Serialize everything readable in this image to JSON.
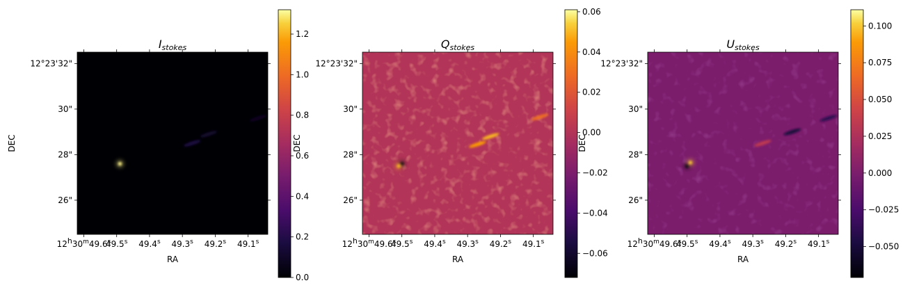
{
  "chart_data": [
    {
      "type": "heatmap",
      "title": "I",
      "title_subscript": "stokes",
      "xlabel": "RA",
      "ylabel": "DEC",
      "colormap": "inferno",
      "x_ticks": [
        {
          "prefix": "12",
          "h": "h",
          "mid": "30",
          "m": "m",
          "val": "49.6",
          "s": "s"
        },
        {
          "prefix": "",
          "h": "",
          "mid": "",
          "m": "",
          "val": "49.5",
          "s": "s"
        },
        {
          "prefix": "",
          "h": "",
          "mid": "",
          "m": "",
          "val": "49.4",
          "s": "s"
        },
        {
          "prefix": "",
          "h": "",
          "mid": "",
          "m": "",
          "val": "49.3",
          "s": "s"
        },
        {
          "prefix": "",
          "h": "",
          "mid": "",
          "m": "",
          "val": "49.2",
          "s": "s"
        },
        {
          "prefix": "",
          "h": "",
          "mid": "",
          "m": "",
          "val": "49.1",
          "s": "s"
        }
      ],
      "x_tick_values": [
        49.6,
        49.5,
        49.4,
        49.3,
        49.2,
        49.1
      ],
      "xlim": [
        49.62,
        49.04
      ],
      "y_ticks": [
        "12°23'32\"",
        "30\"",
        "28\"",
        "26\""
      ],
      "y_tick_values": [
        32,
        30,
        28,
        26
      ],
      "ylim": [
        24.5,
        32.5
      ],
      "colorbar": {
        "ticks": [
          "0.0",
          "0.2",
          "0.4",
          "0.6",
          "0.8",
          "1.0",
          "1.2"
        ],
        "tick_values": [
          0.0,
          0.2,
          0.4,
          0.6,
          0.8,
          1.0,
          1.2
        ],
        "range": [
          0.0,
          1.32
        ]
      },
      "background_value": 0.0,
      "features": [
        {
          "ra": 49.49,
          "dec": 27.6,
          "value": 1.3,
          "kind": "point-source"
        },
        {
          "ra": 49.27,
          "dec": 28.5,
          "value": 0.18,
          "kind": "jet"
        },
        {
          "ra": 49.22,
          "dec": 28.9,
          "value": 0.12,
          "kind": "jet"
        },
        {
          "ra": 49.07,
          "dec": 29.6,
          "value": 0.08,
          "kind": "jet"
        }
      ]
    },
    {
      "type": "heatmap",
      "title": "Q",
      "title_subscript": "stokes",
      "xlabel": "RA",
      "ylabel": "DEC",
      "colormap": "inferno",
      "x_ticks": [
        {
          "prefix": "12",
          "h": "h",
          "mid": "30",
          "m": "m",
          "val": "49.6",
          "s": "s"
        },
        {
          "prefix": "",
          "h": "",
          "mid": "",
          "m": "",
          "val": "49.5",
          "s": "s"
        },
        {
          "prefix": "",
          "h": "",
          "mid": "",
          "m": "",
          "val": "49.4",
          "s": "s"
        },
        {
          "prefix": "",
          "h": "",
          "mid": "",
          "m": "",
          "val": "49.3",
          "s": "s"
        },
        {
          "prefix": "",
          "h": "",
          "mid": "",
          "m": "",
          "val": "49.2",
          "s": "s"
        },
        {
          "prefix": "",
          "h": "",
          "mid": "",
          "m": "",
          "val": "49.1",
          "s": "s"
        }
      ],
      "x_tick_values": [
        49.6,
        49.5,
        49.4,
        49.3,
        49.2,
        49.1
      ],
      "xlim": [
        49.62,
        49.04
      ],
      "y_ticks": [
        "12°23'32\"",
        "30\"",
        "28\"",
        "26\""
      ],
      "y_tick_values": [
        32,
        30,
        28,
        26
      ],
      "ylim": [
        24.5,
        32.5
      ],
      "colorbar": {
        "ticks": [
          "−0.06",
          "−0.04",
          "−0.02",
          "0.00",
          "0.02",
          "0.04",
          "0.06"
        ],
        "tick_values": [
          -0.06,
          -0.04,
          -0.02,
          0.0,
          0.02,
          0.04,
          0.06
        ],
        "range": [
          -0.072,
          0.061
        ]
      },
      "background_value": 0.0,
      "features": [
        {
          "ra": 49.5,
          "dec": 27.6,
          "value": -0.07,
          "kind": "point-source"
        },
        {
          "ra": 49.51,
          "dec": 27.5,
          "value": 0.05,
          "kind": "point-source"
        },
        {
          "ra": 49.27,
          "dec": 28.45,
          "value": 0.045,
          "kind": "jet"
        },
        {
          "ra": 49.23,
          "dec": 28.8,
          "value": 0.05,
          "kind": "jet"
        },
        {
          "ra": 49.08,
          "dec": 29.65,
          "value": 0.03,
          "kind": "jet"
        }
      ]
    },
    {
      "type": "heatmap",
      "title": "U",
      "title_subscript": "stokes",
      "xlabel": "RA",
      "ylabel": "DEC",
      "colormap": "inferno",
      "x_ticks": [
        {
          "prefix": "12",
          "h": "h",
          "mid": "30",
          "m": "m",
          "val": "49.6",
          "s": "s"
        },
        {
          "prefix": "",
          "h": "",
          "mid": "",
          "m": "",
          "val": "49.5",
          "s": "s"
        },
        {
          "prefix": "",
          "h": "",
          "mid": "",
          "m": "",
          "val": "49.4",
          "s": "s"
        },
        {
          "prefix": "",
          "h": "",
          "mid": "",
          "m": "",
          "val": "49.3",
          "s": "s"
        },
        {
          "prefix": "",
          "h": "",
          "mid": "",
          "m": "",
          "val": "49.2",
          "s": "s"
        },
        {
          "prefix": "",
          "h": "",
          "mid": "",
          "m": "",
          "val": "49.1",
          "s": "s"
        }
      ],
      "x_tick_values": [
        49.6,
        49.5,
        49.4,
        49.3,
        49.2,
        49.1
      ],
      "xlim": [
        49.62,
        49.04
      ],
      "y_ticks": [
        "12°23'32\"",
        "30\"",
        "28\"",
        "26\""
      ],
      "y_tick_values": [
        32,
        30,
        28,
        26
      ],
      "ylim": [
        24.5,
        32.5
      ],
      "colorbar": {
        "ticks": [
          "−0.050",
          "−0.025",
          "0.000",
          "0.025",
          "0.050",
          "0.075",
          "0.100"
        ],
        "tick_values": [
          -0.05,
          -0.025,
          0.0,
          0.025,
          0.05,
          0.075,
          0.1
        ],
        "range": [
          -0.071,
          0.111
        ]
      },
      "background_value": 0.0,
      "features": [
        {
          "ra": 49.5,
          "dec": 27.5,
          "value": -0.07,
          "kind": "point-source"
        },
        {
          "ra": 49.49,
          "dec": 27.65,
          "value": 0.1,
          "kind": "point-source"
        },
        {
          "ra": 49.27,
          "dec": 28.5,
          "value": 0.035,
          "kind": "jet"
        },
        {
          "ra": 49.18,
          "dec": 29.0,
          "value": -0.05,
          "kind": "jet"
        },
        {
          "ra": 49.07,
          "dec": 29.6,
          "value": -0.04,
          "kind": "jet"
        }
      ]
    }
  ]
}
